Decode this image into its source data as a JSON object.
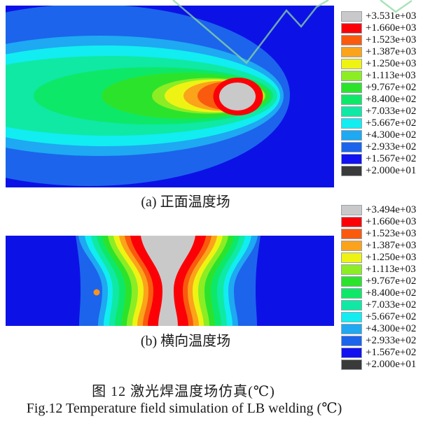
{
  "figure": {
    "caption_a": "(a) 正面温度场",
    "caption_b": "(b) 横向温度场",
    "caption_zh": "图 12  激光焊温度场仿真(℃)",
    "caption_en": "Fig.12  Temperature field simulation of LB welding (℃)"
  },
  "palette": {
    "gray": "#c9c9c9",
    "red": "#fb0007",
    "orange_red": "#f95a0e",
    "orange": "#fba31a",
    "yellow": "#eef314",
    "yellow_green": "#8ced24",
    "green": "#2ce32c",
    "emerald": "#0ee869",
    "spring": "#0fe9a4",
    "cyan": "#11edf0",
    "sky": "#1ea9f2",
    "blue": "#1c64ec",
    "deep_blue": "#1111f2",
    "charcoal": "#3a3a3a",
    "plot_bg": "#0c12e6",
    "watermark": "#8cd9a0",
    "dot": "#f8941d"
  },
  "legend_a": {
    "entries": [
      {
        "label": "+3.531e+03",
        "color": "#c9c9c9"
      },
      {
        "label": "+1.660e+03",
        "color": "#fb0007"
      },
      {
        "label": "+1.523e+03",
        "color": "#f95a0e"
      },
      {
        "label": "+1.387e+03",
        "color": "#fba31a"
      },
      {
        "label": "+1.250e+03",
        "color": "#eef314"
      },
      {
        "label": "+1.113e+03",
        "color": "#8ced24"
      },
      {
        "label": "+9.767e+02",
        "color": "#2ce32c"
      },
      {
        "label": "+8.400e+02",
        "color": "#0ee869"
      },
      {
        "label": "+7.033e+02",
        "color": "#0fe9a4"
      },
      {
        "label": "+5.667e+02",
        "color": "#11edf0"
      },
      {
        "label": "+4.300e+02",
        "color": "#1ea9f2"
      },
      {
        "label": "+2.933e+02",
        "color": "#1c64ec"
      },
      {
        "label": "+1.567e+02",
        "color": "#1111f2"
      },
      {
        "label": "+2.000e+01",
        "color": "#3a3a3a"
      }
    ]
  },
  "legend_b": {
    "entries": [
      {
        "label": "+3.494e+03",
        "color": "#c9c9c9"
      },
      {
        "label": "+1.660e+03",
        "color": "#fb0007"
      },
      {
        "label": "+1.523e+03",
        "color": "#f95a0e"
      },
      {
        "label": "+1.387e+03",
        "color": "#fba31a"
      },
      {
        "label": "+1.250e+03",
        "color": "#eef314"
      },
      {
        "label": "+1.113e+03",
        "color": "#8ced24"
      },
      {
        "label": "+9.767e+02",
        "color": "#2ce32c"
      },
      {
        "label": "+8.400e+02",
        "color": "#0ee869"
      },
      {
        "label": "+7.033e+02",
        "color": "#0fe9a4"
      },
      {
        "label": "+5.667e+02",
        "color": "#11edf0"
      },
      {
        "label": "+4.300e+02",
        "color": "#1ea9f2"
      },
      {
        "label": "+2.933e+02",
        "color": "#1c64ec"
      },
      {
        "label": "+1.567e+02",
        "color": "#1111f2"
      },
      {
        "label": "+2.000e+01",
        "color": "#3a3a3a"
      }
    ]
  },
  "chart_data": [
    {
      "type": "heatmap",
      "subtype": "contour",
      "title": "(a) 正面温度场",
      "description": "Top-view temperature field of moving laser heat source: comet-shaped nested isotherms trailing left, molten (gray) pool near right side",
      "unit": "℃",
      "legend_position": "right",
      "levels": [
        3531,
        1660,
        1523,
        1387,
        1250,
        1113,
        976.7,
        840.0,
        703.3,
        566.7,
        430.0,
        293.3,
        156.7,
        20
      ],
      "level_labels": [
        "+3.531e+03",
        "+1.660e+03",
        "+1.523e+03",
        "+1.387e+03",
        "+1.250e+03",
        "+1.113e+03",
        "+9.767e+02",
        "+8.400e+02",
        "+7.033e+02",
        "+5.667e+02",
        "+4.300e+02",
        "+2.933e+02",
        "+1.567e+02",
        "+2.000e+01"
      ],
      "max_temperature": 3531,
      "min_temperature": 20,
      "hot_spot": {
        "shape": "ellipse",
        "x_frac": 0.71,
        "y_frac": 0.5
      }
    },
    {
      "type": "heatmap",
      "subtype": "contour",
      "title": "(b) 横向温度场",
      "description": "Transverse cross-section temperature field: hourglass-shaped molten (gray) zone at weld centerline with symmetric rainbow bands, orange marker dot at left",
      "unit": "℃",
      "legend_position": "right",
      "levels": [
        3494,
        1660,
        1523,
        1387,
        1250,
        1113,
        976.7,
        840.0,
        703.3,
        566.7,
        430.0,
        293.3,
        156.7,
        20
      ],
      "level_labels": [
        "+3.494e+03",
        "+1.660e+03",
        "+1.523e+03",
        "+1.387e+03",
        "+1.250e+03",
        "+1.113e+03",
        "+9.767e+02",
        "+8.400e+02",
        "+7.033e+02",
        "+5.667e+02",
        "+4.300e+02",
        "+2.933e+02",
        "+1.567e+02",
        "+2.000e+01"
      ],
      "max_temperature": 3494,
      "min_temperature": 20,
      "marker_dot": {
        "color": "#f8941d",
        "x_frac": 0.28,
        "y_frac": 0.63
      }
    }
  ]
}
